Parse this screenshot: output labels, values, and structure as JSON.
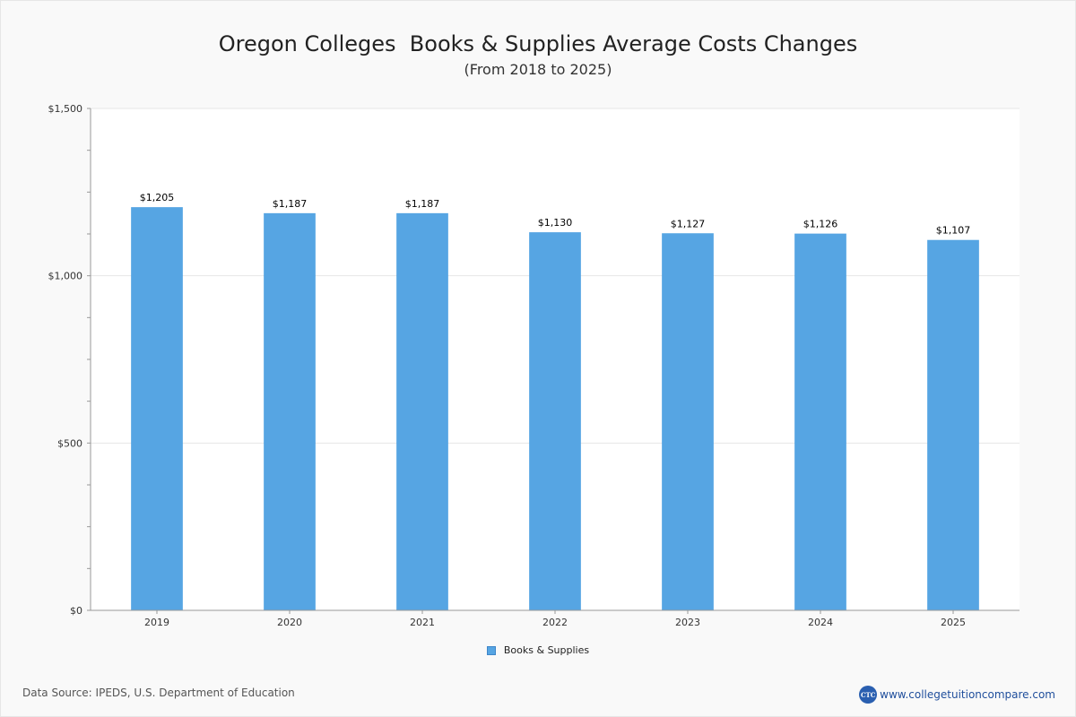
{
  "chart_data": {
    "type": "bar",
    "title": "Oregon Colleges  Books & Supplies Average Costs Changes",
    "subtitle": "(From 2018 to 2025)",
    "categories": [
      "2019",
      "2020",
      "2021",
      "2022",
      "2023",
      "2024",
      "2025"
    ],
    "series": [
      {
        "name": "Books & Supplies",
        "values": [
          1205,
          1187,
          1187,
          1130,
          1127,
          1126,
          1107
        ],
        "data_labels": [
          "$1,205",
          "$1,187",
          "$1,187",
          "$1,130",
          "$1,127",
          "$1,126",
          "$1,107"
        ],
        "color": "#56a5e3"
      }
    ],
    "ylim": [
      0,
      1500
    ],
    "yticks": [
      0,
      500,
      1000,
      1500
    ],
    "ytick_labels": [
      "$0",
      "$500",
      "$1,000",
      "$1,500"
    ],
    "grid": true,
    "legend_position": "bottom-center"
  },
  "footer": {
    "data_source": "Data Source: IPEDS, U.S. Department of Education",
    "logo_text": "CTC",
    "site": "www.collegetuitioncompare.com"
  }
}
